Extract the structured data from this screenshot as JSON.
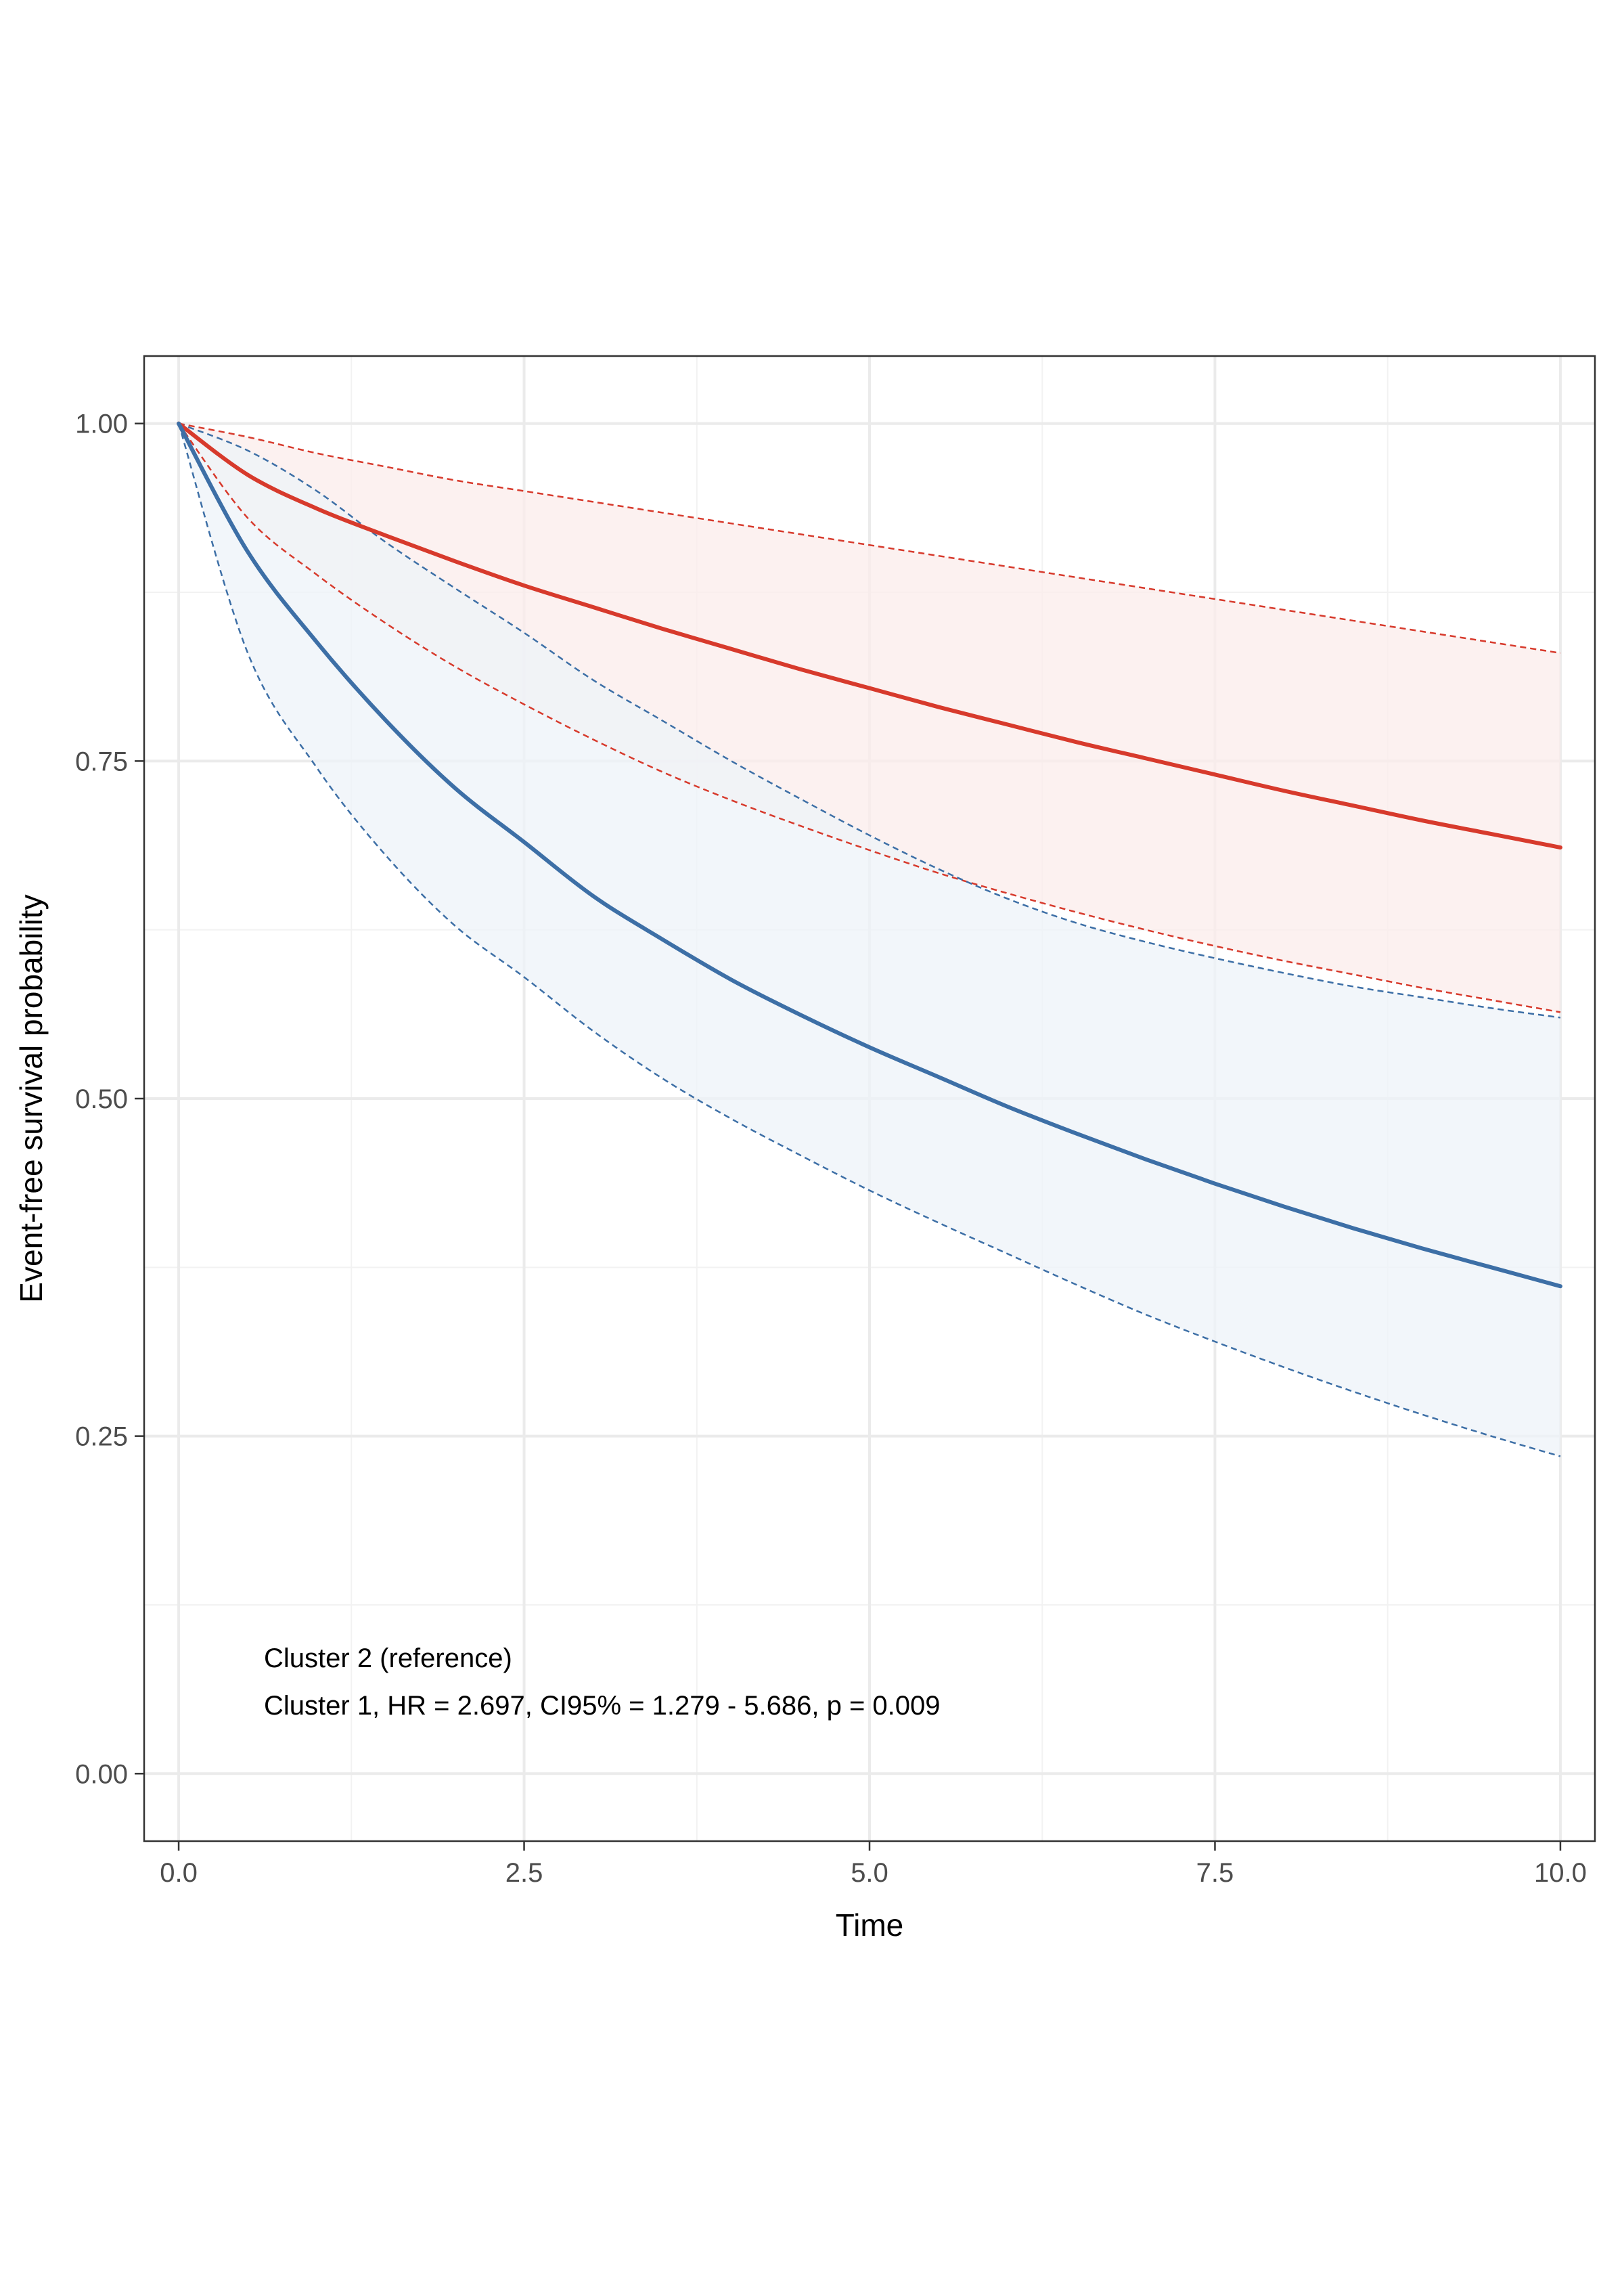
{
  "chart_data": {
    "type": "line",
    "xlabel": "Time",
    "ylabel": "Event-free survival probability",
    "xlim": [
      -0.25,
      10.25
    ],
    "ylim": [
      -0.05,
      1.05
    ],
    "x_ticks": [
      "0.0",
      "2.5",
      "5.0",
      "7.5",
      "10.0"
    ],
    "y_ticks": [
      "0.00",
      "0.25",
      "0.50",
      "0.75",
      "1.00"
    ],
    "grid": true,
    "annotations": [
      "Cluster 2 (reference)",
      "Cluster 1, HR = 2.697, CI95% = 1.279 - 5.686, p = 0.009"
    ],
    "series": [
      {
        "color": "#d73a2c",
        "fill": "#fbeceb",
        "x": [
          0,
          0.5,
          1,
          1.5,
          2,
          2.5,
          3,
          3.5,
          4,
          4.5,
          5,
          5.5,
          6,
          6.5,
          7,
          7.5,
          8,
          8.5,
          9,
          9.5,
          10
        ],
        "y": [
          1.0,
          0.962,
          0.937,
          0.917,
          0.898,
          0.88,
          0.864,
          0.848,
          0.833,
          0.818,
          0.804,
          0.79,
          0.777,
          0.764,
          0.752,
          0.74,
          0.728,
          0.717,
          0.706,
          0.696,
          0.686
        ],
        "lower": [
          1.0,
          0.93,
          0.888,
          0.852,
          0.82,
          0.792,
          0.766,
          0.742,
          0.721,
          0.702,
          0.684,
          0.667,
          0.652,
          0.638,
          0.625,
          0.613,
          0.602,
          0.592,
          0.582,
          0.573,
          0.564
        ],
        "upper": [
          1.0,
          0.99,
          0.978,
          0.968,
          0.958,
          0.95,
          0.942,
          0.934,
          0.926,
          0.918,
          0.91,
          0.902,
          0.894,
          0.886,
          0.878,
          0.87,
          0.862,
          0.854,
          0.846,
          0.838,
          0.83
        ]
      },
      {
        "color": "#3d6fa6",
        "fill": "#eef3f8",
        "x": [
          0,
          0.5,
          1,
          1.5,
          2,
          2.5,
          3,
          3.5,
          4,
          4.5,
          5,
          5.5,
          6,
          6.5,
          7,
          7.5,
          8,
          8.5,
          9,
          9.5,
          10
        ],
        "y": [
          1.0,
          0.905,
          0.838,
          0.78,
          0.73,
          0.69,
          0.65,
          0.618,
          0.588,
          0.562,
          0.538,
          0.516,
          0.494,
          0.474,
          0.455,
          0.437,
          0.42,
          0.404,
          0.389,
          0.375,
          0.361
        ],
        "lower": [
          1.0,
          0.83,
          0.745,
          0.68,
          0.628,
          0.59,
          0.55,
          0.515,
          0.485,
          0.458,
          0.432,
          0.408,
          0.385,
          0.362,
          0.34,
          0.32,
          0.301,
          0.283,
          0.266,
          0.25,
          0.235
        ],
        "upper": [
          1.0,
          0.98,
          0.95,
          0.912,
          0.878,
          0.845,
          0.81,
          0.78,
          0.75,
          0.722,
          0.695,
          0.67,
          0.648,
          0.63,
          0.616,
          0.604,
          0.593,
          0.583,
          0.575,
          0.567,
          0.56
        ]
      }
    ]
  }
}
